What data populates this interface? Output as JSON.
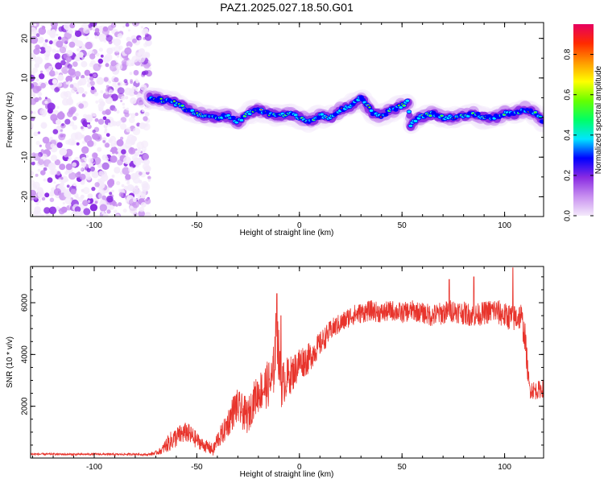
{
  "title": "PAZ1.2025.027.18.50.G01",
  "chart_data": [
    {
      "type": "heatmap",
      "name": "spectrogram",
      "xlabel": "Height of straight line (km)",
      "ylabel": "Frequency (Hz)",
      "xlim": [
        -131,
        119
      ],
      "ylim": [
        -25,
        24
      ],
      "xticks": [
        -100,
        -50,
        0,
        50,
        100
      ],
      "xtick_labels": [
        "-100",
        "-50",
        "0",
        "50",
        "100"
      ],
      "yticks": [
        -20,
        -10,
        0,
        10,
        20
      ],
      "ytick_labels": [
        "-20",
        "-10",
        "0",
        "10",
        "20"
      ],
      "noise_region_x": [
        -131,
        -73
      ],
      "ridge": {
        "x": [
          -73,
          -68,
          -62,
          -58,
          -55,
          -50,
          -45,
          -40,
          -35,
          -30,
          -25,
          -20,
          -15,
          -10,
          -5,
          0,
          5,
          10,
          15,
          20,
          25,
          30,
          33,
          36,
          40,
          45,
          50,
          53,
          54,
          58,
          65,
          70,
          75,
          80,
          85,
          90,
          95,
          100,
          105,
          110,
          115,
          119
        ],
        "freq": [
          5,
          4.5,
          4,
          3,
          2,
          1,
          0.5,
          0,
          0.5,
          -1,
          1,
          2,
          1,
          0.5,
          1,
          0,
          -1,
          0.5,
          0,
          2,
          3,
          5,
          3,
          1,
          0.5,
          2,
          3,
          4,
          -2,
          0,
          1,
          0,
          0,
          0.5,
          1,
          0,
          0,
          1,
          1,
          2,
          1,
          -1
        ]
      },
      "colorbar": {
        "label": "Normalized spectral amplitude",
        "range": [
          0,
          0.95
        ],
        "ticks": [
          0.0,
          0.2,
          0.4,
          0.6,
          0.8
        ],
        "tick_labels": [
          "0.0",
          "0.2",
          "0.4",
          "0.6",
          "0.8"
        ],
        "colors": [
          "#f4eafb",
          "#c890f0",
          "#8a2be2",
          "#0000ff",
          "#00e5ff",
          "#00ff66",
          "#66ff00",
          "#ffff00",
          "#ff9900",
          "#ff2a00",
          "#e60060"
        ]
      }
    },
    {
      "type": "line",
      "name": "snr",
      "xlabel": "Height of straight line (km)",
      "ylabel": "SNR (10 * v/v)",
      "xlim": [
        -131,
        119
      ],
      "ylim": [
        0,
        7400
      ],
      "xticks": [
        -100,
        -50,
        0,
        50,
        100
      ],
      "xtick_labels": [
        "-100",
        "-50",
        "0",
        "50",
        "100"
      ],
      "yticks": [
        2000,
        4000,
        6000
      ],
      "ytick_labels": [
        "2000",
        "4000",
        "6000"
      ],
      "color": "#e8342c",
      "series": {
        "x": [
          -131,
          -120,
          -110,
          -100,
          -90,
          -80,
          -74,
          -70,
          -67,
          -65,
          -62,
          -58,
          -55,
          -52,
          -50,
          -47,
          -44,
          -42,
          -40,
          -37,
          -34,
          -31,
          -28,
          -25,
          -22,
          -19,
          -16,
          -13,
          -11,
          -9,
          -6,
          -3,
          0,
          4,
          8,
          12,
          16,
          20,
          22,
          25,
          30,
          35,
          40,
          45,
          50,
          55,
          60,
          65,
          70,
          75,
          80,
          85,
          90,
          95,
          100,
          105,
          108,
          110,
          112,
          115,
          119
        ],
        "y": [
          150,
          150,
          140,
          150,
          140,
          150,
          130,
          200,
          300,
          500,
          700,
          900,
          1000,
          800,
          700,
          500,
          400,
          300,
          700,
          1000,
          1500,
          2000,
          1800,
          1600,
          2300,
          2600,
          2800,
          3000,
          5000,
          2800,
          3100,
          3300,
          3700,
          3800,
          4200,
          4600,
          5000,
          5200,
          5300,
          5500,
          5600,
          5700,
          5600,
          5700,
          5600,
          5700,
          5600,
          5500,
          5600,
          5700,
          5600,
          5500,
          5600,
          5700,
          5500,
          5400,
          5500,
          4600,
          2700,
          2600,
          2700
        ],
        "noise": [
          40,
          40,
          40,
          40,
          40,
          40,
          40,
          80,
          150,
          300,
          400,
          400,
          400,
          400,
          300,
          250,
          250,
          250,
          350,
          450,
          600,
          700,
          700,
          700,
          700,
          800,
          900,
          1000,
          1200,
          900,
          800,
          700,
          650,
          600,
          500,
          450,
          400,
          400,
          400,
          400,
          400,
          400,
          400,
          400,
          400,
          400,
          400,
          450,
          450,
          450,
          450,
          450,
          450,
          500,
          500,
          550,
          550,
          600,
          400,
          350,
          350
        ],
        "spikes": [
          [
            -11,
            6350
          ],
          [
            -9,
            5500
          ],
          [
            104,
            7350
          ],
          [
            85,
            7000
          ],
          [
            73,
            6900
          ]
        ]
      }
    }
  ]
}
